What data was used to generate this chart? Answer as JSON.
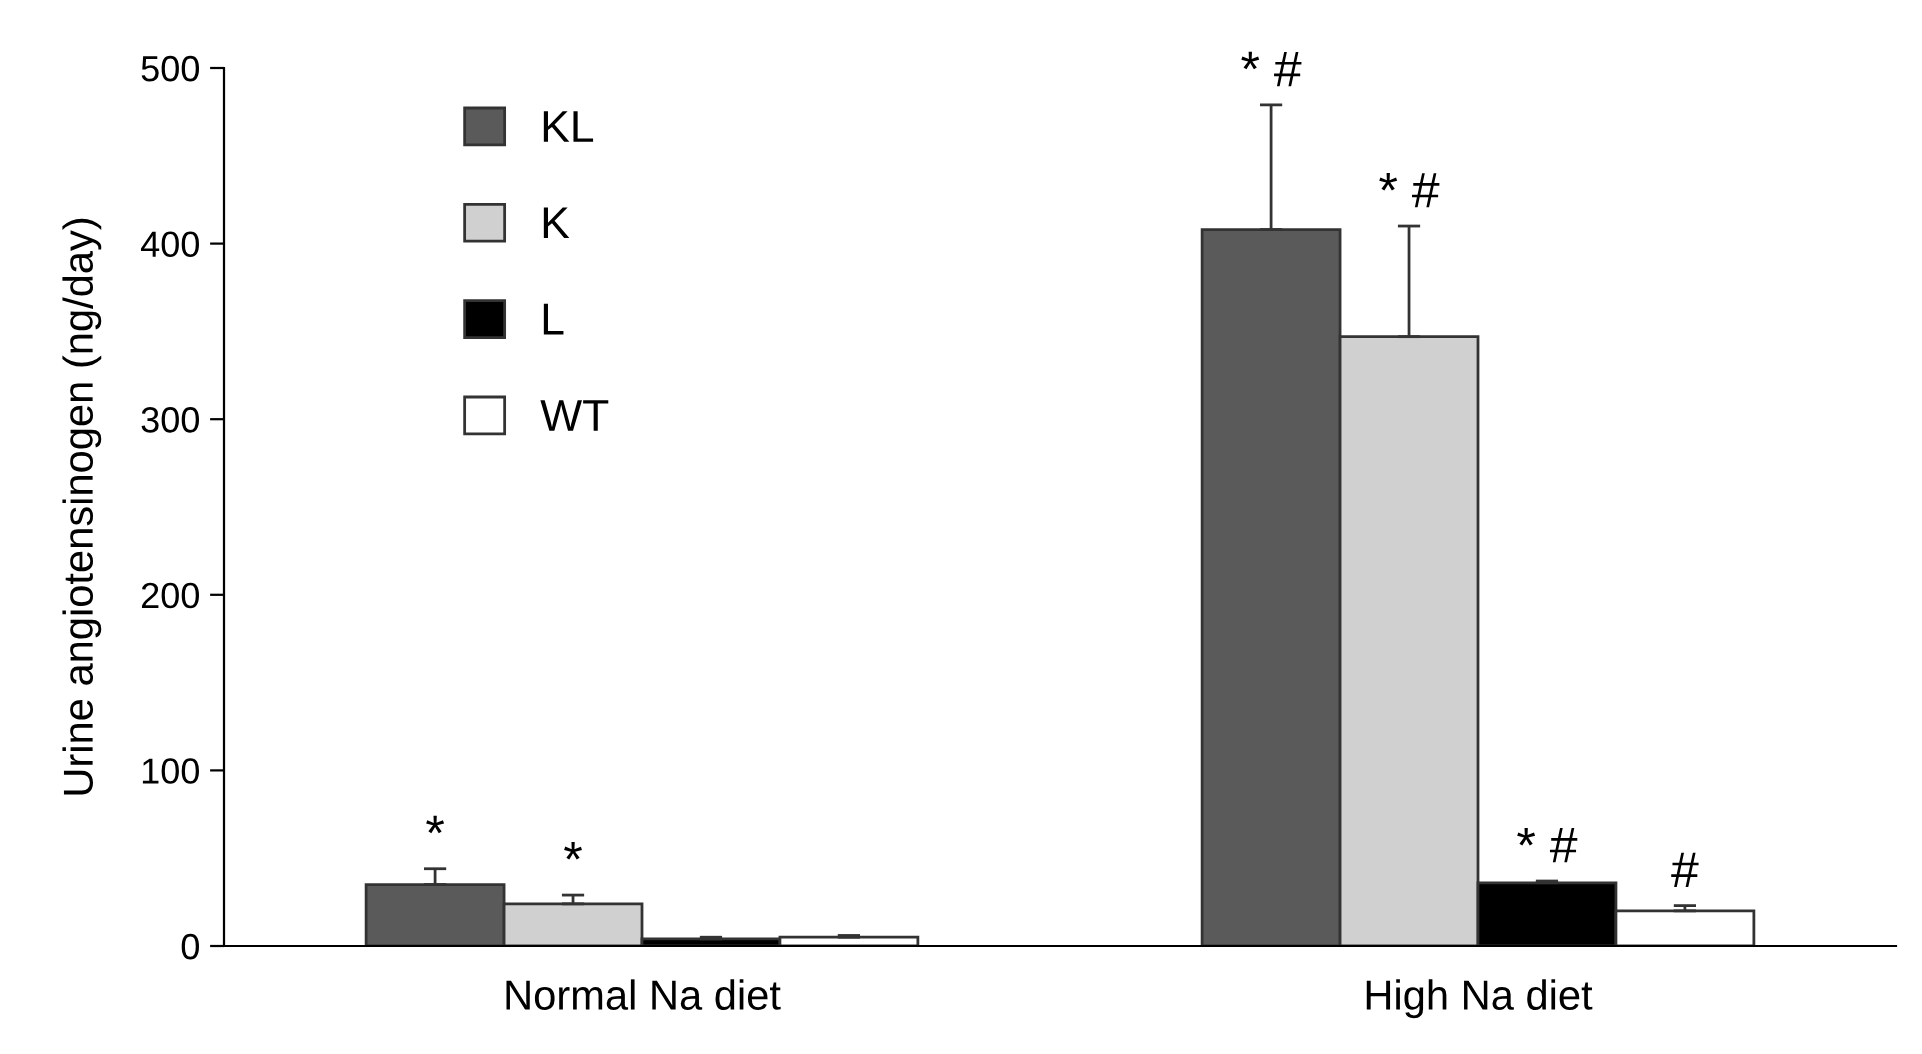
{
  "chart_data": {
    "type": "bar",
    "ylabel": "Urine angiotensinogen (ng/day)",
    "categories": [
      "Normal Na diet",
      "High Na diet"
    ],
    "series": [
      {
        "name": "KL",
        "color": "#5a5a5a",
        "values": [
          35,
          408
        ],
        "errors": [
          9,
          71
        ],
        "value_labels": [
          "*",
          "* #"
        ]
      },
      {
        "name": "K",
        "color": "#d0d0d0",
        "values": [
          24,
          347
        ],
        "errors": [
          5,
          63
        ],
        "value_labels": [
          "*",
          "* #"
        ]
      },
      {
        "name": "L",
        "color": "#000000",
        "values": [
          4,
          36
        ],
        "errors": [
          1,
          1
        ],
        "value_labels": [
          null,
          "* #"
        ]
      },
      {
        "name": "WT",
        "color": "#ffffff",
        "values": [
          5,
          20
        ],
        "errors": [
          1,
          3
        ],
        "value_labels": [
          null,
          "#"
        ]
      }
    ],
    "ylim": [
      0,
      500
    ],
    "yticks": [
      0,
      100,
      200,
      300,
      400,
      500
    ],
    "grid": false,
    "legend": "top left"
  }
}
